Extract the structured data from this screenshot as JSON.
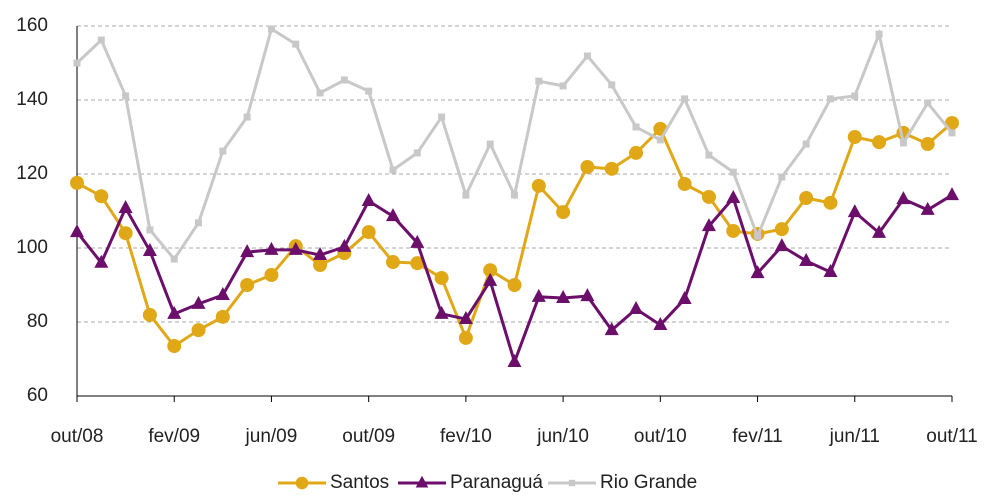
{
  "chart_data": {
    "type": "line",
    "categories": [
      "out/08",
      null,
      null,
      null,
      "fev/09",
      null,
      null,
      null,
      "jun/09",
      null,
      null,
      null,
      "out/09",
      null,
      null,
      null,
      "fev/10",
      null,
      null,
      null,
      "jun/10",
      null,
      null,
      null,
      "out/10",
      null,
      null,
      null,
      "fev/11",
      null,
      null,
      null,
      "jun/11",
      null,
      null,
      null,
      "out/11"
    ],
    "series": [
      {
        "name": "Santos",
        "color": "#e0a817",
        "marker": "circle",
        "values": [
          117.6,
          114,
          104,
          81.9,
          73.5,
          77.8,
          81.4,
          90,
          92.7,
          100.5,
          95.4,
          98.6,
          104.3,
          96.2,
          95.9,
          91.9,
          75.7,
          94,
          90,
          116.8,
          109.7,
          121.9,
          121.4,
          125.7,
          132.2,
          117.3,
          113.8,
          104.6,
          103.8,
          105.1,
          113.5,
          112.2,
          130,
          128.6,
          131.1,
          128.1,
          133.8
        ]
      },
      {
        "name": "Paranaguá",
        "color": "#6b0f6b",
        "marker": "triangle",
        "values": [
          104.3,
          96,
          110.8,
          99.2,
          82.2,
          84.9,
          87.3,
          98.9,
          99.5,
          99.5,
          98.1,
          100.3,
          112.7,
          108.6,
          101.4,
          82.2,
          80.8,
          91.1,
          69.2,
          86.8,
          86.5,
          87,
          77.8,
          83.5,
          79.2,
          86.2,
          105.9,
          113.5,
          93.2,
          100.5,
          96.5,
          93.5,
          109.7,
          104.1,
          113.2,
          110.3,
          114.3
        ]
      },
      {
        "name": "Rio Grande",
        "color": "#c8c8c8",
        "marker": "square",
        "values": [
          150,
          156.2,
          141.1,
          104.9,
          97,
          106.8,
          126.2,
          135.4,
          159.2,
          155.1,
          141.9,
          145.4,
          142.4,
          121.1,
          125.7,
          135.4,
          114.3,
          128.1,
          114.3,
          145.1,
          143.8,
          151.9,
          144.1,
          132.7,
          129.2,
          140.3,
          125.1,
          120.5,
          103.2,
          119.2,
          128.1,
          140.3,
          141.1,
          157.8,
          128.4,
          139.2,
          131.1
        ]
      }
    ],
    "ylim": [
      60,
      160
    ],
    "yticks": [
      60,
      80,
      100,
      120,
      140,
      160
    ],
    "grid": true,
    "legend": "bottom"
  }
}
